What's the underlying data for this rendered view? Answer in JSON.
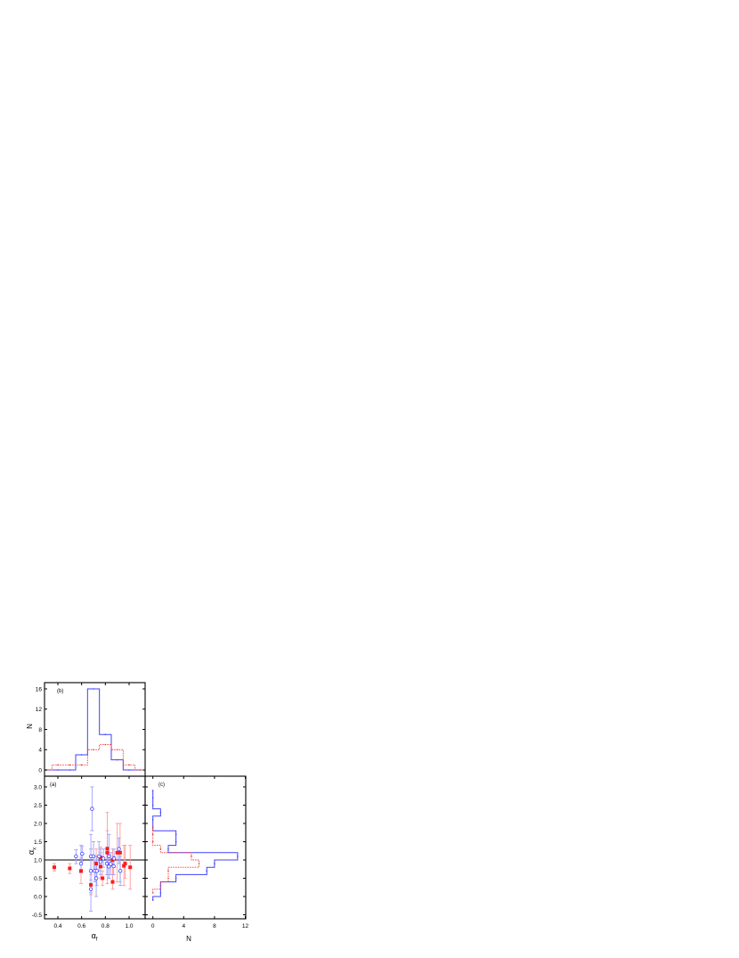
{
  "chart_data": [
    {
      "panel": "a",
      "type": "scatter",
      "label": "(a)",
      "xlabel": {
        "symbol": "α",
        "subscript": "f"
      },
      "ylabel": {
        "symbol": "α",
        "subscript": "x"
      },
      "xlim": [
        0.28,
        1.15
      ],
      "ylim": [
        -0.6,
        3.3
      ],
      "xticks": [
        "0.4",
        "0.6",
        "0.8",
        "1.0"
      ],
      "yticks": [
        "-0.5",
        "0.0",
        "0.5",
        "1.0",
        "1.5",
        "2.0",
        "2.5",
        "3.0"
      ],
      "reference_line_y": 1.0,
      "grid": false,
      "series": [
        {
          "marker": "filled-square",
          "color": "#ff1a1a",
          "errcolor": "#ff9a9a",
          "points": [
            {
              "x": 0.37,
              "y": 0.8,
              "ylo": 0.7,
              "yhi": 0.9
            },
            {
              "x": 0.5,
              "y": 0.77,
              "ylo": 0.63,
              "yhi": 0.9
            },
            {
              "x": 0.595,
              "y": 0.7,
              "ylo": 0.35,
              "yhi": 1.05
            },
            {
              "x": 0.678,
              "y": 0.32,
              "ylo": 0.05,
              "yhi": 0.6
            },
            {
              "x": 0.723,
              "y": 0.9,
              "ylo": 0.5,
              "yhi": 1.3
            },
            {
              "x": 0.76,
              "y": 0.82,
              "ylo": 0.5,
              "yhi": 1.2
            },
            {
              "x": 0.776,
              "y": 0.5,
              "ylo": 0.3,
              "yhi": 0.7
            },
            {
              "x": 0.76,
              "y": 1.07,
              "ylo": 0.8,
              "yhi": 1.35
            },
            {
              "x": 0.816,
              "y": 1.31,
              "ylo": 0.35,
              "yhi": 2.3
            },
            {
              "x": 0.816,
              "y": 1.2,
              "ylo": 0.6,
              "yhi": 1.8
            },
            {
              "x": 0.861,
              "y": 1.0,
              "ylo": 0.6,
              "yhi": 1.3
            },
            {
              "x": 0.861,
              "y": 0.4,
              "ylo": 0.2,
              "yhi": 0.6
            },
            {
              "x": 0.9,
              "y": 1.2,
              "ylo": 0.4,
              "yhi": 2.0
            },
            {
              "x": 0.924,
              "y": 1.2,
              "ylo": 0.4,
              "yhi": 2.0
            },
            {
              "x": 0.956,
              "y": 0.84,
              "ylo": 0.3,
              "yhi": 1.4
            },
            {
              "x": 0.966,
              "y": 0.9,
              "ylo": 0.5,
              "yhi": 1.4
            },
            {
              "x": 1.009,
              "y": 0.8,
              "ylo": 0.2,
              "yhi": 1.4
            }
          ]
        },
        {
          "marker": "open-circle",
          "color": "#4040ff",
          "errcolor": "#a0a0ff",
          "points": [
            {
              "x": 0.553,
              "y": 1.1,
              "ylo": 0.9,
              "yhi": 1.28
            },
            {
              "x": 0.595,
              "y": 0.9,
              "ylo": 0.65,
              "yhi": 1.4
            },
            {
              "x": 0.605,
              "y": 1.17,
              "ylo": 0.97,
              "yhi": 1.37
            },
            {
              "x": 0.688,
              "y": 2.4,
              "ylo": 1.8,
              "yhi": 3.0
            },
            {
              "x": 0.678,
              "y": 1.1,
              "ylo": 0.45,
              "yhi": 1.7
            },
            {
              "x": 0.678,
              "y": 0.7,
              "ylo": 0.1,
              "yhi": 1.3
            },
            {
              "x": 0.678,
              "y": 0.2,
              "ylo": -0.4,
              "yhi": 0.7
            },
            {
              "x": 0.7,
              "y": 1.1,
              "ylo": 0.7,
              "yhi": 1.5
            },
            {
              "x": 0.71,
              "y": 0.7,
              "ylo": 0.4,
              "yhi": 1.0
            },
            {
              "x": 0.723,
              "y": 0.5,
              "ylo": 0.0,
              "yhi": 1.0
            },
            {
              "x": 0.728,
              "y": 0.7,
              "ylo": 0.3,
              "yhi": 1.1
            },
            {
              "x": 0.746,
              "y": 1.1,
              "ylo": 0.7,
              "yhi": 1.5
            },
            {
              "x": 0.76,
              "y": 0.95,
              "ylo": 0.6,
              "yhi": 1.3
            },
            {
              "x": 0.783,
              "y": 1.04,
              "ylo": 0.8,
              "yhi": 1.3
            },
            {
              "x": 0.813,
              "y": 0.9,
              "ylo": 0.6,
              "yhi": 1.2
            },
            {
              "x": 0.83,
              "y": 0.82,
              "ylo": 0.5,
              "yhi": 1.1
            },
            {
              "x": 0.83,
              "y": 1.1,
              "ylo": 0.5,
              "yhi": 1.7
            },
            {
              "x": 0.845,
              "y": 0.89,
              "ylo": 0.6,
              "yhi": 1.2
            },
            {
              "x": 0.87,
              "y": 0.83,
              "ylo": 0.6,
              "yhi": 1.1
            },
            {
              "x": 0.873,
              "y": 1.04,
              "ylo": 0.8,
              "yhi": 1.3
            },
            {
              "x": 0.914,
              "y": 1.3,
              "ylo": 0.9,
              "yhi": 1.6
            },
            {
              "x": 0.926,
              "y": 0.7,
              "ylo": 0.3,
              "yhi": 1.1
            }
          ]
        }
      ]
    },
    {
      "panel": "b",
      "type": "histogram-step",
      "label": "(b)",
      "ylabel": "N",
      "ylim": [
        -1.2,
        17.2
      ],
      "yticks": [
        "0",
        "4",
        "8",
        "12",
        "16"
      ],
      "bin_centers": [
        0.3,
        0.4,
        0.5,
        0.6,
        0.7,
        0.8,
        0.9,
        1.0,
        1.1
      ],
      "series": [
        {
          "style": "solid",
          "color": "#4040ff",
          "counts": [
            0,
            0,
            0,
            3,
            16,
            7,
            2,
            0,
            0
          ]
        },
        {
          "style": "dotted",
          "color": "#ff3030",
          "counts": [
            0,
            1,
            1,
            1,
            4,
            5,
            4,
            1,
            0
          ]
        }
      ]
    },
    {
      "panel": "c",
      "type": "histogram-step-horizontal",
      "label": "(c)",
      "xlabel": "N",
      "xlim": [
        -1,
        12
      ],
      "xticks": [
        "0",
        "4",
        "8",
        "12"
      ],
      "series": [
        {
          "style": "solid",
          "color": "#4040ff",
          "bin_centers": [
            -0.1,
            0.1,
            0.3,
            0.5,
            0.7,
            0.9,
            1.1,
            1.3,
            1.5,
            1.7,
            1.9,
            2.1,
            2.3,
            2.5,
            2.7,
            2.9
          ],
          "counts": [
            0,
            1,
            1,
            3,
            7,
            8,
            11,
            2,
            3,
            3,
            0,
            0,
            1,
            0,
            0,
            0
          ]
        },
        {
          "style": "dotted",
          "color": "#ff3030",
          "bin_centers": [
            0.1,
            0.3,
            0.5,
            0.7,
            0.9,
            1.1,
            1.3,
            1.5,
            1.7,
            1.9
          ],
          "counts": [
            0,
            1,
            2,
            2,
            6,
            5,
            1,
            0,
            0,
            0
          ]
        }
      ]
    }
  ]
}
